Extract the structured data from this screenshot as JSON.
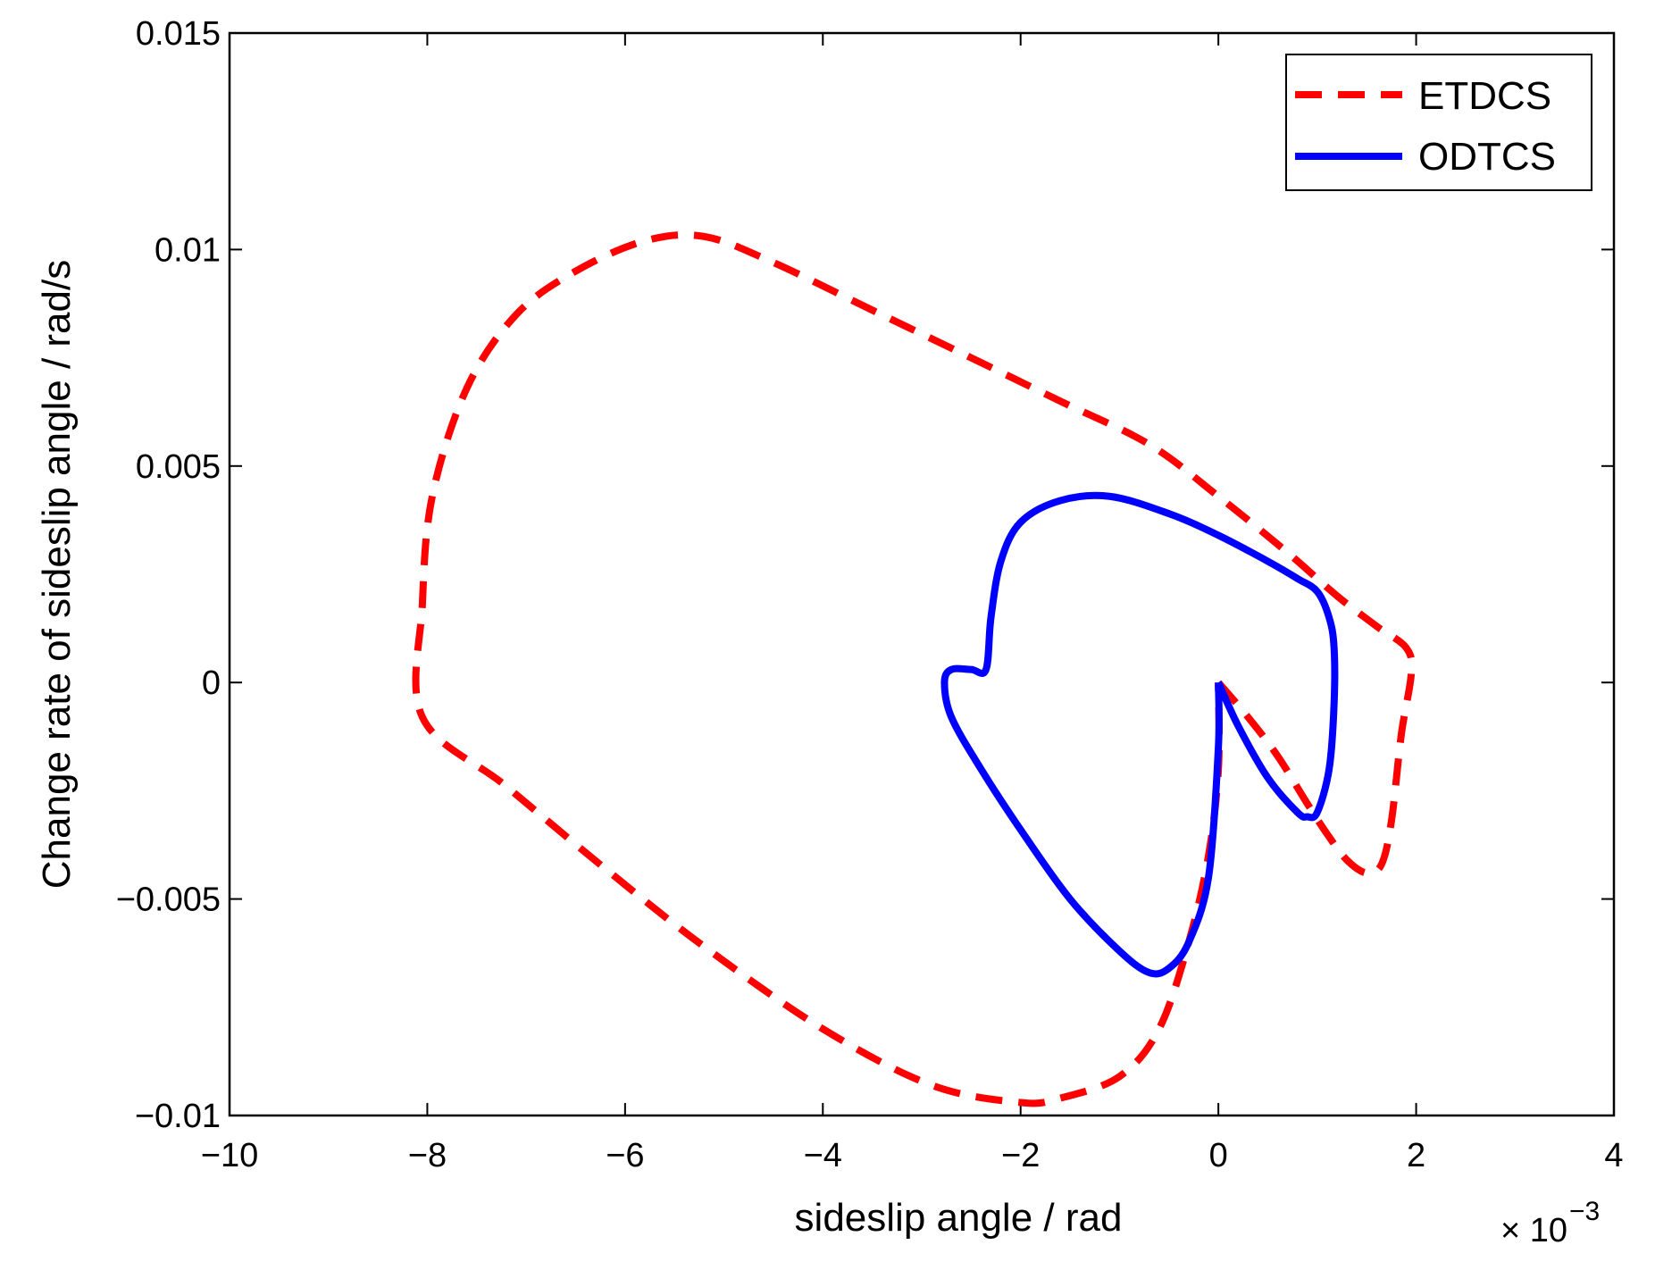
{
  "chart_data": {
    "type": "line",
    "xlabel": "sideslip angle / rad",
    "ylabel": "Change rate of sideslip angle / rad/s",
    "x_multiplier": "× 10",
    "x_multiplier_exp": "−3",
    "xlim": [
      -10,
      4
    ],
    "ylim": [
      -0.01,
      0.015
    ],
    "x_ticks": [
      -10,
      -8,
      -6,
      -4,
      -2,
      0,
      2,
      4
    ],
    "x_tick_labels": [
      "−10",
      "−8",
      "−6",
      "−4",
      "−2",
      "0",
      "2",
      "4"
    ],
    "y_ticks": [
      -0.01,
      -0.005,
      0,
      0.005,
      0.01,
      0.015
    ],
    "y_tick_labels": [
      "−0.01",
      "−0.005",
      "0",
      "0.005",
      "0.01",
      "0.015"
    ],
    "grid": false,
    "legend_position": "top-right",
    "series": [
      {
        "name": "ETDCS",
        "color": "#ff0000",
        "style": "dashed",
        "points": [
          [
            0,
            0
          ],
          [
            0.3,
            -0.0008
          ],
          [
            0.6,
            -0.0017
          ],
          [
            0.9,
            -0.0028
          ],
          [
            1.1,
            -0.0035
          ],
          [
            1.3,
            -0.0041
          ],
          [
            1.5,
            -0.0044
          ],
          [
            1.65,
            -0.0042
          ],
          [
            1.75,
            -0.0032
          ],
          [
            1.85,
            -0.0012
          ],
          [
            1.95,
            0.0002
          ],
          [
            1.9,
            0.0008
          ],
          [
            1.6,
            0.0013
          ],
          [
            1.2,
            0.002
          ],
          [
            0.7,
            0.003
          ],
          [
            0,
            0.0043
          ],
          [
            -0.7,
            0.0055
          ],
          [
            -1.6,
            0.0065
          ],
          [
            -2.5,
            0.0075
          ],
          [
            -3.5,
            0.0086
          ],
          [
            -4.5,
            0.0097
          ],
          [
            -5.2,
            0.0103
          ],
          [
            -5.8,
            0.0102
          ],
          [
            -6.5,
            0.0095
          ],
          [
            -7.1,
            0.0085
          ],
          [
            -7.6,
            0.0068
          ],
          [
            -7.95,
            0.0043
          ],
          [
            -8.05,
            0.0018
          ],
          [
            -8.05,
            -0.0008
          ],
          [
            -7.2,
            -0.0024
          ],
          [
            -6.2,
            -0.0043
          ],
          [
            -5.2,
            -0.0061
          ],
          [
            -4.0,
            -0.008
          ],
          [
            -2.9,
            -0.0093
          ],
          [
            -2.0,
            -0.0097
          ],
          [
            -1.6,
            -0.0096
          ],
          [
            -1.0,
            -0.0091
          ],
          [
            -0.6,
            -0.008
          ],
          [
            -0.3,
            -0.006
          ],
          [
            -0.1,
            -0.004
          ],
          [
            0,
            -0.002
          ],
          [
            0,
            0
          ]
        ]
      },
      {
        "name": "ODTCS",
        "color": "#0000ff",
        "style": "solid",
        "points": [
          [
            0,
            0
          ],
          [
            0.2,
            -0.001
          ],
          [
            0.5,
            -0.0022
          ],
          [
            0.8,
            -0.003
          ],
          [
            0.9,
            -0.0031
          ],
          [
            1.0,
            -0.003
          ],
          [
            1.12,
            -0.002
          ],
          [
            1.17,
            -0.0005
          ],
          [
            1.17,
            0.0008
          ],
          [
            1.12,
            0.0015
          ],
          [
            1.0,
            0.0021
          ],
          [
            0.8,
            0.0024
          ],
          [
            0.5,
            0.0028
          ],
          [
            0,
            0.0034
          ],
          [
            -0.5,
            0.0039
          ],
          [
            -1.1,
            0.0043
          ],
          [
            -1.6,
            0.0042
          ],
          [
            -2.0,
            0.0037
          ],
          [
            -2.2,
            0.0028
          ],
          [
            -2.3,
            0.0015
          ],
          [
            -2.35,
            0.0003
          ],
          [
            -2.5,
            0.0003
          ],
          [
            -2.7,
            0.0003
          ],
          [
            -2.77,
            0
          ],
          [
            -2.7,
            -0.0008
          ],
          [
            -2.4,
            -0.002
          ],
          [
            -2.0,
            -0.0034
          ],
          [
            -1.5,
            -0.005
          ],
          [
            -1.0,
            -0.0062
          ],
          [
            -0.7,
            -0.0067
          ],
          [
            -0.5,
            -0.0066
          ],
          [
            -0.3,
            -0.006
          ],
          [
            -0.1,
            -0.0045
          ],
          [
            0,
            -0.0015
          ],
          [
            0,
            0
          ]
        ]
      }
    ]
  }
}
